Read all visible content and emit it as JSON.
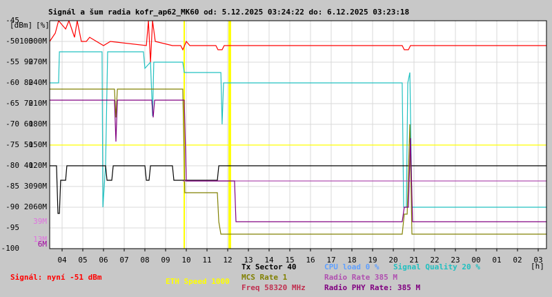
{
  "chart_data": {
    "type": "line",
    "title": "Signál a šum radia kofr_ap62_MK60 od: 5.12.2025 03:24:22 do: 6.12.2025 03:23:18",
    "y_unit": "[dBm]",
    "y2_unit": "[%]",
    "x_unit": "[h]",
    "grid": true,
    "xlim": [
      3.4,
      27.4
    ],
    "xticks": [
      {
        "value": 4,
        "label": "04"
      },
      {
        "value": 5,
        "label": "05"
      },
      {
        "value": 6,
        "label": "06"
      },
      {
        "value": 7,
        "label": "07"
      },
      {
        "value": 8,
        "label": "08"
      },
      {
        "value": 9,
        "label": "09"
      },
      10,
      11,
      12,
      13,
      14,
      15,
      16,
      17,
      18,
      19,
      20,
      21,
      22,
      23,
      {
        "value": 24,
        "label": "00"
      },
      {
        "value": 25,
        "label": "01"
      },
      {
        "value": 26,
        "label": "02"
      },
      {
        "value": 27,
        "label": "03"
      }
    ],
    "ylim": [
      -100,
      -45
    ],
    "yticks": [
      -45,
      -50,
      -55,
      -60,
      -65,
      -70,
      -75,
      -80,
      -85,
      -90,
      -95,
      -100
    ],
    "y2lim": [
      0,
      110
    ],
    "y2ticks": [
      100,
      90,
      80,
      70,
      60,
      50,
      40,
      30,
      20
    ],
    "y3lim": [
      0,
      330
    ],
    "y3ticks": [
      {
        "value": 300,
        "label": "300M"
      },
      {
        "value": 270,
        "label": "270M"
      },
      {
        "value": 240,
        "label": "240M"
      },
      {
        "value": 210,
        "label": "210M"
      },
      {
        "value": 180,
        "label": "180M"
      },
      {
        "value": 150,
        "label": "150M"
      },
      {
        "value": 120,
        "label": "120M"
      },
      {
        "value": 90,
        "label": "90M"
      },
      {
        "value": 60,
        "label": "60M"
      }
    ],
    "marker_ticks": [
      {
        "value": 39,
        "label": "39M",
        "color": "#e070e0"
      },
      {
        "value": 13,
        "label": "13M",
        "color": "#e070e0"
      },
      {
        "value": 6,
        "label": "6M",
        "color": "#a000a0"
      }
    ],
    "event_lines": {
      "color": "#ffff00",
      "x": [
        9.9,
        12.07,
        12.13
      ]
    },
    "series": [
      {
        "name": "ETH Speed 1000",
        "color": "#ffff00",
        "axis": "y3",
        "x": [
          3.4,
          27.4
        ],
        "values": [
          150,
          150
        ]
      },
      {
        "name": "Signal Quality 20 %",
        "color": "#20c0c0",
        "axis": "y2",
        "x": [
          3.4,
          3.83,
          3.87,
          5.93,
          5.97,
          6.1,
          6.2,
          7.93,
          8.0,
          8.27,
          8.37,
          8.43,
          9.83,
          9.9,
          11.67,
          11.73,
          11.8,
          20.43,
          20.5,
          20.63,
          20.7,
          20.8,
          20.9,
          27.4
        ],
        "values": [
          80,
          80,
          95,
          95,
          20,
          40,
          95,
          95,
          87,
          90,
          64,
          90,
          90,
          85,
          85,
          60,
          80,
          80,
          20,
          20,
          80,
          85,
          20,
          20
        ]
      },
      {
        "name": "Tx Sector 40",
        "color": "#000000",
        "axis": "y2",
        "x": [
          3.4,
          3.73,
          3.8,
          3.87,
          3.93,
          4.17,
          4.23,
          6.1,
          6.17,
          6.4,
          6.47,
          8.0,
          8.07,
          8.2,
          8.27,
          9.33,
          9.4,
          9.9,
          11.5,
          11.57,
          27.4
        ],
        "values": [
          40,
          40,
          17,
          17,
          33,
          33,
          40,
          40,
          33,
          33,
          40,
          40,
          33,
          33,
          40,
          40,
          33,
          33,
          33,
          40,
          40
        ]
      },
      {
        "name": "MCS Rate 1",
        "color": "#808000",
        "axis": "y3",
        "x": [
          3.4,
          6.53,
          6.6,
          6.67,
          9.83,
          9.93,
          11.5,
          11.57,
          11.67,
          20.43,
          20.53,
          20.67,
          20.8,
          20.9,
          27.4
        ],
        "values": [
          231,
          231,
          190,
          231,
          231,
          81,
          81,
          39,
          21,
          21,
          50,
          50,
          180,
          21,
          21
        ]
      },
      {
        "name": "Radio Rate 385 M",
        "color": "#b050b0",
        "axis": "y3",
        "x": [
          9.83,
          27.4
        ],
        "values": [
          98,
          98
        ]
      },
      {
        "name": "Radio PHY Rate: 385 M",
        "color": "#800080",
        "axis": "y3",
        "x": [
          3.4,
          6.53,
          6.6,
          6.67,
          8.33,
          8.4,
          8.47,
          9.9,
          10.0,
          12.33,
          12.4,
          20.43,
          20.53,
          20.73,
          20.83,
          20.93,
          27.4
        ],
        "values": [
          215,
          215,
          155,
          215,
          215,
          190,
          215,
          215,
          98,
          98,
          39,
          39,
          60,
          60,
          160,
          39,
          39
        ]
      },
      {
        "name": "Signál: nyní -51 dBm",
        "color": "#ff0000",
        "axis": "y",
        "x": [
          3.4,
          3.67,
          3.83,
          4.17,
          4.33,
          4.6,
          4.73,
          4.93,
          5.17,
          5.33,
          6.0,
          6.33,
          8.07,
          8.17,
          8.27,
          8.37,
          8.5,
          9.33,
          9.73,
          9.83,
          10.0,
          10.17,
          11.43,
          11.53,
          11.73,
          11.83,
          20.43,
          20.53,
          20.73,
          20.83,
          27.4
        ],
        "values": [
          -50,
          -48,
          -45,
          -47,
          -45,
          -49,
          -45,
          -50,
          -50,
          -49,
          -51,
          -50,
          -51,
          -45,
          -55,
          -45,
          -50,
          -51,
          -51,
          -52,
          -50,
          -51,
          -51,
          -52,
          -52,
          -51,
          -51,
          -52,
          -52,
          -51,
          -51
        ]
      }
    ],
    "legend_notes": [
      {
        "text": "Freq 58320 MHz",
        "color": "#c03050"
      },
      {
        "text": "CPU load 0 %",
        "color": "#60a0ff"
      }
    ]
  }
}
